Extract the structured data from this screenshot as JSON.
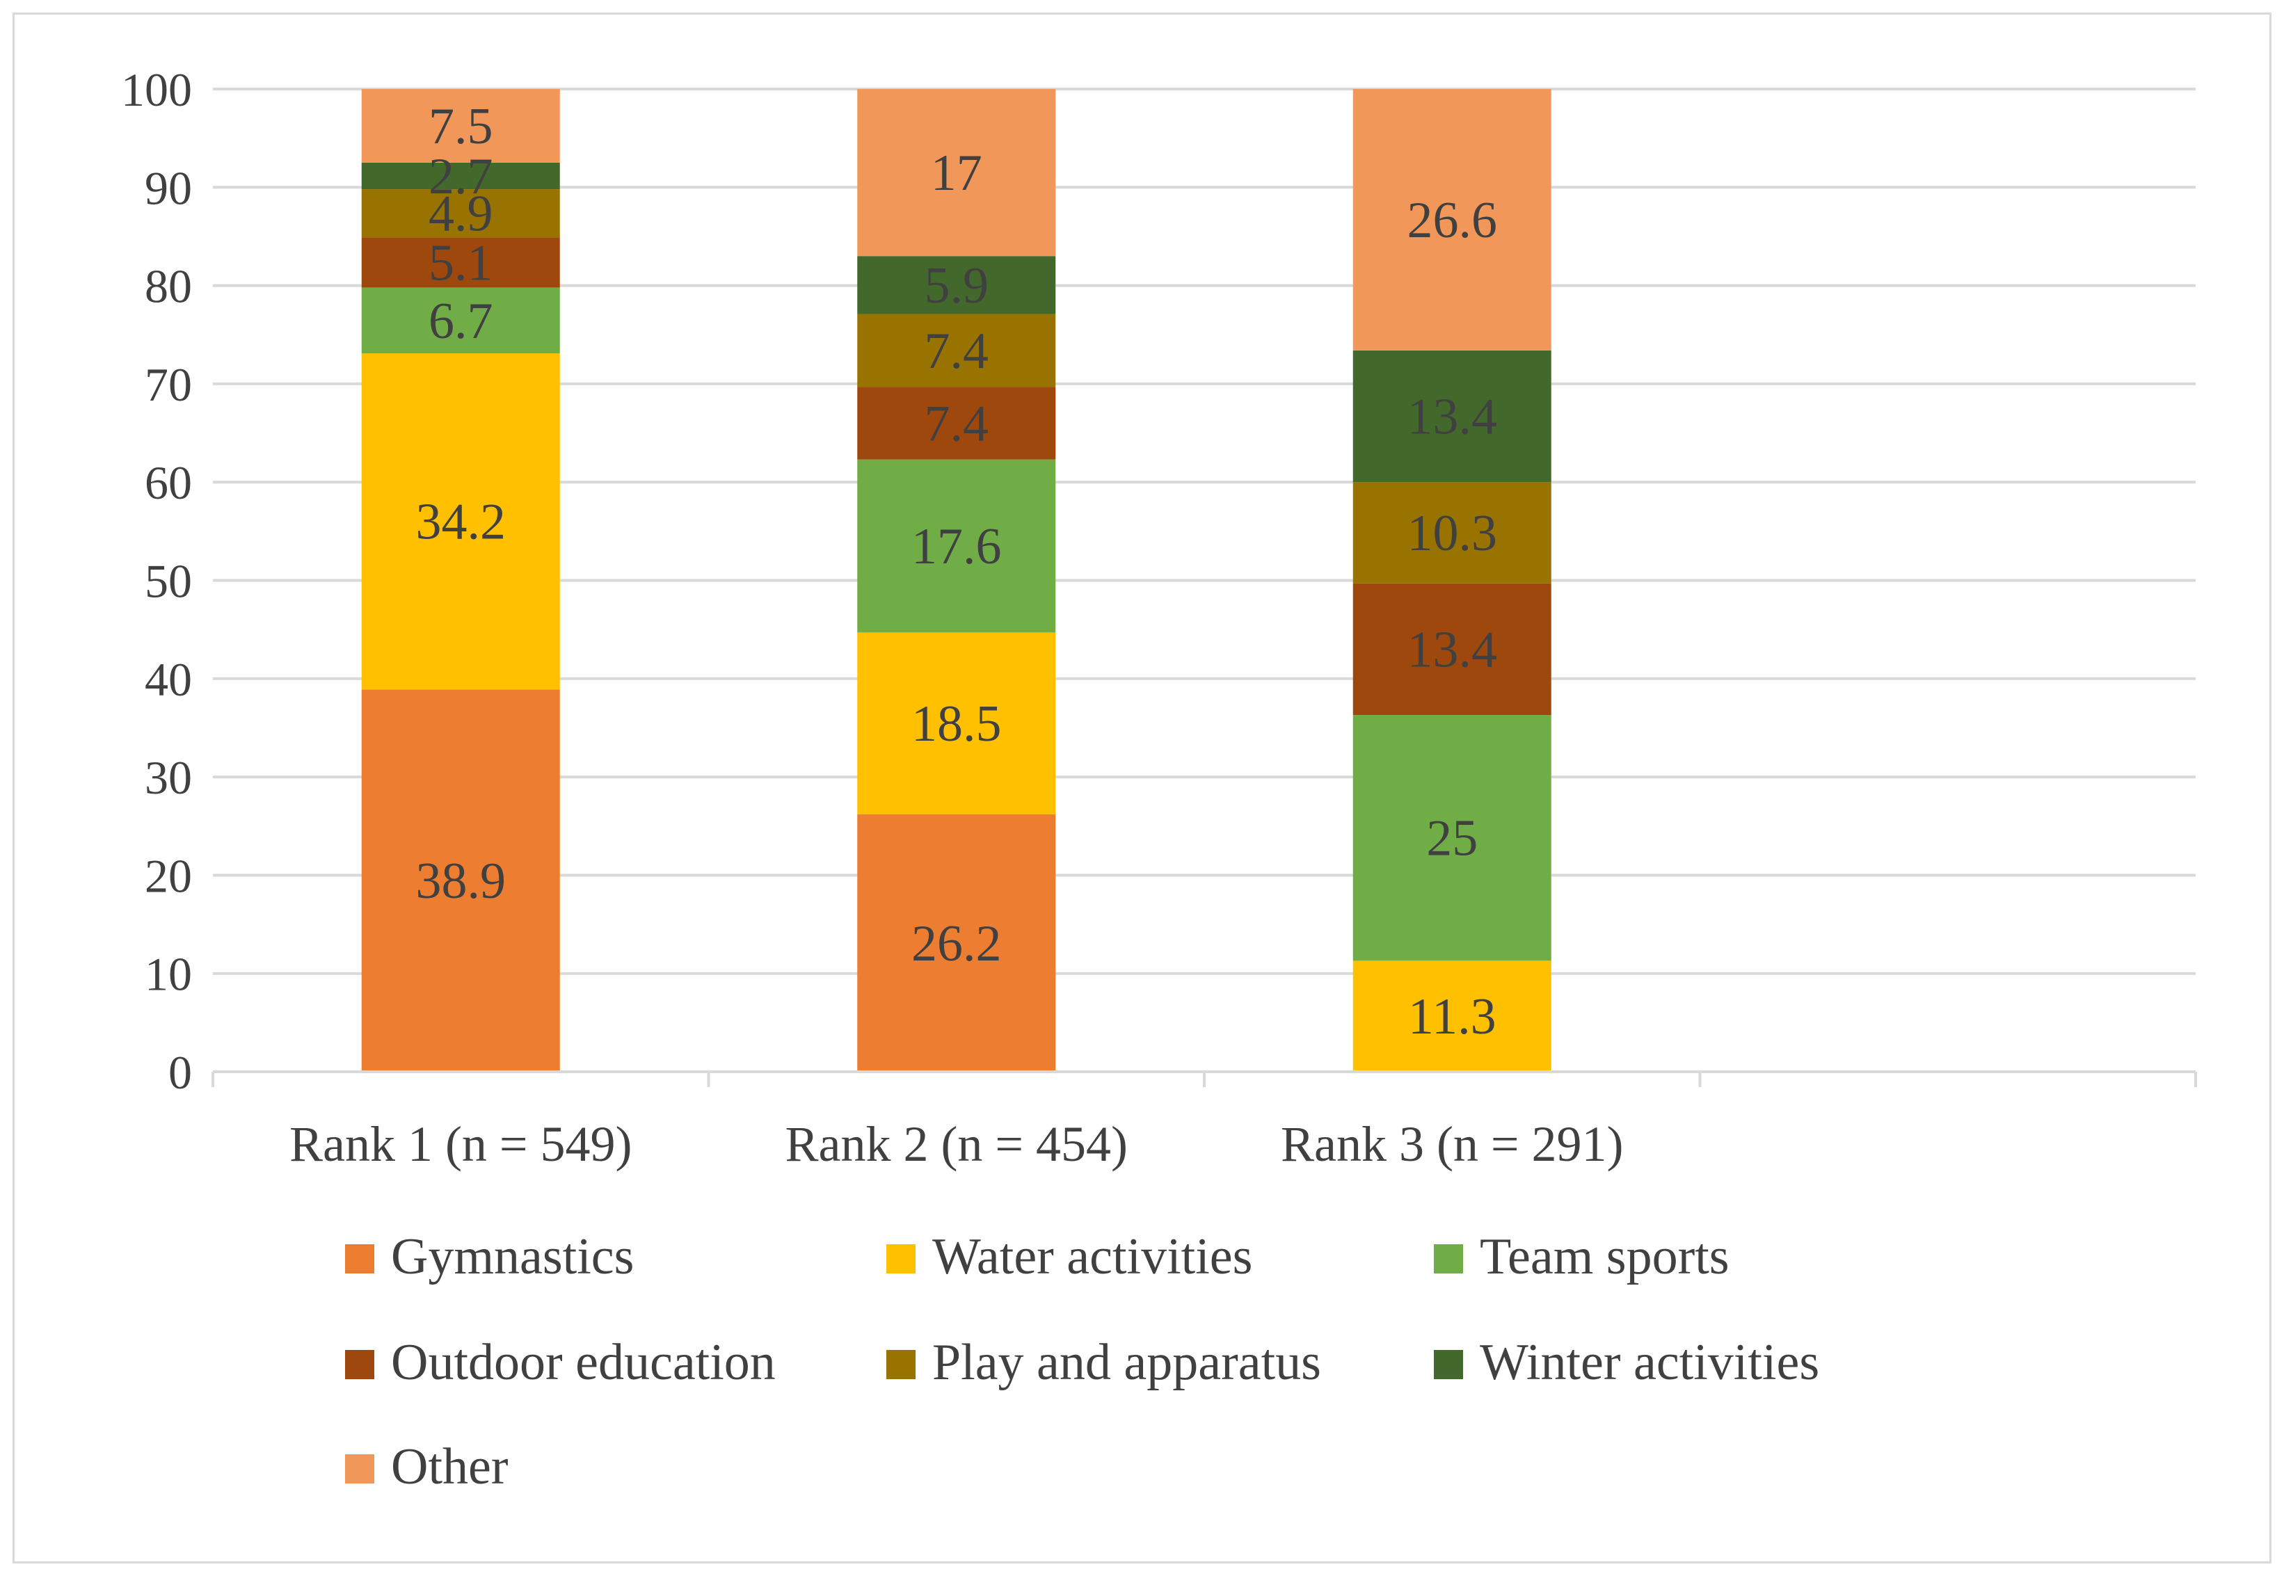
{
  "chart_data": {
    "type": "bar",
    "stacked": true,
    "categories": [
      "Rank 1 (n = 549)",
      "Rank 2 (n = 454)",
      "Rank 3 (n = 291)",
      ""
    ],
    "series": [
      {
        "name": "Gymnastics",
        "color": "#ED7D31",
        "values": [
          38.9,
          26.2,
          0,
          null
        ],
        "labels": [
          "38.9",
          "26.2",
          "",
          ""
        ]
      },
      {
        "name": "Water activities",
        "color": "#FFC000",
        "values": [
          34.2,
          18.5,
          11.3,
          null
        ],
        "labels": [
          "34.2",
          "18.5",
          "11.3",
          ""
        ]
      },
      {
        "name": "Team sports",
        "color": "#70AD47",
        "values": [
          6.7,
          17.6,
          25,
          null
        ],
        "labels": [
          "6.7",
          "17.6",
          "25",
          ""
        ]
      },
      {
        "name": "Outdoor education",
        "color": "#9E480E",
        "values": [
          5.1,
          7.4,
          13.4,
          null
        ],
        "labels": [
          "5.1",
          "7.4",
          "13.4",
          ""
        ]
      },
      {
        "name": "Play and apparatus",
        "color": "#997300",
        "values": [
          4.9,
          7.4,
          10.3,
          null
        ],
        "labels": [
          "4.9",
          "7.4",
          "10.3",
          ""
        ]
      },
      {
        "name": "Winter activities",
        "color": "#43682B",
        "values": [
          2.7,
          5.9,
          13.4,
          null
        ],
        "labels": [
          "2.7",
          "5.9",
          "13.4",
          ""
        ]
      },
      {
        "name": "Other",
        "color": "#F1975A",
        "values": [
          7.5,
          17,
          26.6,
          null
        ],
        "labels": [
          "7.5",
          "17",
          "26.6",
          ""
        ]
      }
    ],
    "yticks": [
      "0",
      "10",
      "20",
      "30",
      "40",
      "50",
      "60",
      "70",
      "80",
      "90",
      "100"
    ],
    "ylim": [
      0,
      100
    ],
    "grid": true,
    "legend_position": "bottom",
    "title": "",
    "xlabel": "",
    "ylabel": "",
    "colors": {
      "gridline": "#d9d9d9",
      "axis": "#d9d9d9",
      "text": "#404040",
      "frame": "#d9d9d9"
    }
  }
}
